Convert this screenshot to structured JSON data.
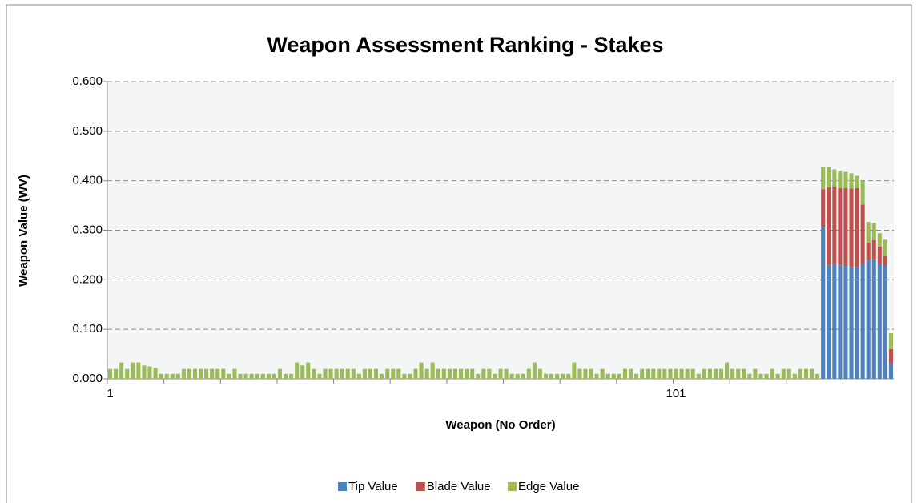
{
  "chart_data": {
    "type": "stacked_bar",
    "title": "Weapon Assessment Ranking - Stakes",
    "x_label": "Weapon  (No Order)",
    "y_label": "Weapon Value (WV)",
    "categories": [
      "1",
      null,
      null,
      null,
      null,
      null,
      null,
      null,
      null,
      null,
      null,
      null,
      null,
      null,
      null,
      null,
      null,
      null,
      null,
      null,
      null,
      null,
      null,
      null,
      null,
      null,
      null,
      null,
      null,
      null,
      null,
      null,
      null,
      null,
      null,
      null,
      null,
      null,
      null,
      null,
      null,
      null,
      null,
      null,
      null,
      null,
      null,
      null,
      null,
      null,
      null,
      null,
      null,
      null,
      null,
      null,
      null,
      null,
      null,
      null,
      null,
      null,
      null,
      null,
      null,
      null,
      null,
      null,
      null,
      null,
      null,
      null,
      null,
      null,
      null,
      null,
      null,
      null,
      null,
      null,
      null,
      null,
      null,
      null,
      null,
      null,
      null,
      null,
      null,
      null,
      null,
      null,
      null,
      null,
      null,
      null,
      null,
      null,
      null,
      null,
      "101",
      null,
      null,
      null,
      null,
      null,
      null,
      null,
      null,
      null,
      null,
      null,
      null,
      null,
      null,
      null,
      null,
      null,
      null,
      null,
      null,
      null,
      null,
      null,
      null,
      null,
      null,
      null,
      null,
      null,
      null,
      null,
      null,
      null,
      null,
      null,
      null,
      null,
      null
    ],
    "series": [
      {
        "name": "Tip Value",
        "color": "#4f81bd",
        "values": [
          0,
          0,
          0,
          0,
          0,
          0,
          0,
          0,
          0,
          0,
          0,
          0,
          0,
          0,
          0,
          0,
          0,
          0,
          0,
          0,
          0,
          0,
          0,
          0,
          0,
          0,
          0,
          0,
          0,
          0,
          0,
          0,
          0,
          0,
          0,
          0,
          0,
          0,
          0,
          0,
          0,
          0,
          0,
          0,
          0,
          0,
          0,
          0,
          0,
          0,
          0,
          0,
          0,
          0,
          0,
          0,
          0,
          0,
          0,
          0,
          0,
          0,
          0,
          0,
          0,
          0,
          0,
          0,
          0,
          0,
          0,
          0,
          0,
          0,
          0,
          0,
          0,
          0,
          0,
          0,
          0,
          0,
          0,
          0,
          0,
          0,
          0,
          0,
          0,
          0,
          0,
          0,
          0,
          0,
          0,
          0,
          0,
          0,
          0,
          0,
          0,
          0,
          0,
          0,
          0,
          0,
          0,
          0,
          0,
          0,
          0,
          0,
          0,
          0,
          0,
          0,
          0,
          0,
          0,
          0,
          0,
          0,
          0,
          0,
          0,
          0,
          0.307,
          0.23,
          0.233,
          0.23,
          0.228,
          0.226,
          0.225,
          0.232,
          0.24,
          0.242,
          0.232,
          0.228,
          0.032
        ]
      },
      {
        "name": "Blade Value",
        "color": "#c0504d",
        "values": [
          0,
          0,
          0,
          0,
          0,
          0,
          0,
          0,
          0,
          0,
          0,
          0,
          0,
          0,
          0,
          0,
          0,
          0,
          0,
          0,
          0,
          0,
          0,
          0,
          0,
          0,
          0,
          0,
          0,
          0,
          0,
          0,
          0,
          0,
          0,
          0,
          0,
          0,
          0,
          0,
          0,
          0,
          0,
          0,
          0,
          0,
          0,
          0,
          0,
          0,
          0,
          0,
          0,
          0,
          0,
          0,
          0,
          0,
          0,
          0,
          0,
          0,
          0,
          0,
          0,
          0,
          0,
          0,
          0,
          0,
          0,
          0,
          0,
          0,
          0,
          0,
          0,
          0,
          0,
          0,
          0,
          0,
          0,
          0,
          0,
          0,
          0,
          0,
          0,
          0,
          0,
          0,
          0,
          0,
          0,
          0,
          0,
          0,
          0,
          0,
          0,
          0,
          0,
          0,
          0,
          0,
          0,
          0,
          0,
          0,
          0,
          0,
          0,
          0,
          0,
          0,
          0,
          0,
          0,
          0,
          0,
          0,
          0,
          0,
          0,
          0,
          0.076,
          0.157,
          0.155,
          0.155,
          0.157,
          0.158,
          0.16,
          0.12,
          0.035,
          0.038,
          0.035,
          0.02,
          0.028
        ]
      },
      {
        "name": "Edge Value",
        "color": "#9bbb59",
        "values": [
          0.02,
          0.02,
          0.033,
          0.02,
          0.033,
          0.033,
          0.027,
          0.025,
          0.022,
          0.01,
          0.01,
          0.01,
          0.01,
          0.02,
          0.02,
          0.02,
          0.02,
          0.02,
          0.02,
          0.02,
          0.02,
          0.01,
          0.02,
          0.01,
          0.01,
          0.01,
          0.01,
          0.01,
          0.01,
          0.01,
          0.02,
          0.01,
          0.01,
          0.033,
          0.027,
          0.033,
          0.02,
          0.01,
          0.02,
          0.02,
          0.02,
          0.02,
          0.02,
          0.02,
          0.01,
          0.02,
          0.02,
          0.02,
          0.01,
          0.02,
          0.02,
          0.02,
          0.01,
          0.01,
          0.02,
          0.033,
          0.02,
          0.033,
          0.02,
          0.02,
          0.02,
          0.02,
          0.02,
          0.02,
          0.02,
          0.01,
          0.02,
          0.02,
          0.01,
          0.02,
          0.02,
          0.01,
          0.01,
          0.01,
          0.02,
          0.033,
          0.02,
          0.01,
          0.01,
          0.01,
          0.01,
          0.01,
          0.033,
          0.02,
          0.02,
          0.02,
          0.01,
          0.02,
          0.01,
          0.01,
          0.01,
          0.02,
          0.02,
          0.01,
          0.02,
          0.02,
          0.02,
          0.02,
          0.02,
          0.02,
          0.02,
          0.02,
          0.02,
          0.02,
          0.01,
          0.02,
          0.02,
          0.02,
          0.02,
          0.033,
          0.02,
          0.02,
          0.02,
          0.01,
          0.02,
          0.01,
          0.01,
          0.02,
          0.01,
          0.02,
          0.02,
          0.01,
          0.02,
          0.02,
          0.02,
          0.01,
          0.045,
          0.04,
          0.035,
          0.035,
          0.033,
          0.031,
          0.025,
          0.048,
          0.042,
          0.035,
          0.027,
          0.033,
          0.032
        ]
      }
    ],
    "ylim": [
      0,
      0.6
    ],
    "yticks": [
      {
        "value": 0,
        "label": "0.000"
      },
      {
        "value": 0.1,
        "label": "0.100"
      },
      {
        "value": 0.2,
        "label": "0.200"
      },
      {
        "value": 0.3,
        "label": "0.300"
      },
      {
        "value": 0.4,
        "label": "0.400"
      },
      {
        "value": 0.5,
        "label": "0.500"
      },
      {
        "value": 0.6,
        "label": "0.600"
      }
    ],
    "grid": true,
    "legend": "bottom"
  }
}
